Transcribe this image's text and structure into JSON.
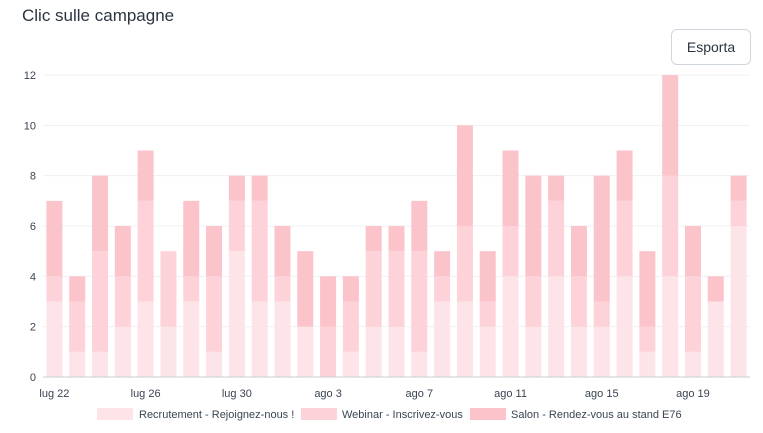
{
  "header": {
    "title": "Clic sulle campagne",
    "export_label": "Esporta"
  },
  "colors": {
    "recrutement": "#fde4e8",
    "webinar": "#fdd3d9",
    "salon": "#fbc4cb",
    "grid": "#eef0f3",
    "axis": "#c8ced6"
  },
  "chart_data": {
    "type": "bar",
    "stacked": true,
    "title": "",
    "xlabel": "",
    "ylabel": "",
    "ylim": [
      0,
      12
    ],
    "yticks": [
      0,
      2,
      4,
      6,
      8,
      10,
      12
    ],
    "grid": true,
    "legend_position": "bottom",
    "categories": [
      "lug 22",
      "lug 23",
      "lug 24",
      "lug 25",
      "lug 26",
      "lug 27",
      "lug 28",
      "lug 29",
      "lug 30",
      "lug 31",
      "ago 1",
      "ago 2",
      "ago 3",
      "ago 4",
      "ago 5",
      "ago 6",
      "ago 7",
      "ago 8",
      "ago 9",
      "ago 10",
      "ago 11",
      "ago 12",
      "ago 13",
      "ago 14",
      "ago 15",
      "ago 16",
      "ago 17",
      "ago 18",
      "ago 19",
      "ago 20",
      "ago 21"
    ],
    "xtick_labels": [
      "lug 22",
      "lug 26",
      "lug 30",
      "ago 3",
      "ago 7",
      "ago 11",
      "ago 15",
      "ago 19"
    ],
    "series": [
      {
        "name": "Recrutement - Rejoignez-nous !",
        "color_key": "recrutement",
        "values": [
          3,
          1,
          1,
          2,
          3,
          2,
          3,
          1,
          5,
          3,
          3,
          2,
          0,
          1,
          2,
          2,
          1,
          3,
          3,
          2,
          4,
          2,
          4,
          2,
          2,
          4,
          1,
          4,
          1,
          3,
          6
        ]
      },
      {
        "name": "Webinar - Inscrivez-vous",
        "color_key": "webinar",
        "values": [
          1,
          2,
          4,
          2,
          4,
          3,
          1,
          3,
          2,
          4,
          1,
          0,
          2,
          2,
          3,
          3,
          4,
          1,
          3,
          1,
          2,
          2,
          3,
          2,
          1,
          3,
          1,
          4,
          3,
          0,
          1
        ]
      },
      {
        "name": "Salon - Rendez-vous au stand E76",
        "color_key": "salon",
        "values": [
          3,
          1,
          3,
          2,
          2,
          0,
          3,
          2,
          1,
          1,
          2,
          3,
          2,
          1,
          1,
          1,
          2,
          1,
          4,
          2,
          3,
          4,
          1,
          2,
          5,
          2,
          3,
          4,
          2,
          1,
          1
        ]
      }
    ]
  }
}
